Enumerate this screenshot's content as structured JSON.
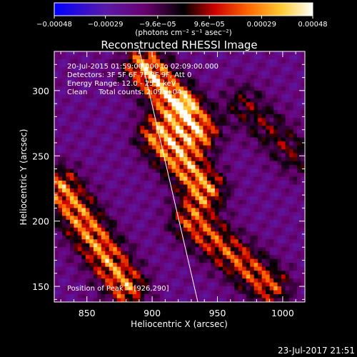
{
  "chart_data": {
    "type": "heatmap",
    "title": "Reconstructed RHESSI Image",
    "xlabel": "Heliocentric X (arcsec)",
    "ylabel": "Heliocentric Y (arcsec)",
    "xlim": [
      825,
      1017
    ],
    "ylim": [
      138,
      330
    ],
    "xticks": [
      850,
      900,
      950,
      1000
    ],
    "yticks": [
      150,
      200,
      250,
      300
    ],
    "colorbar": {
      "label": "(photons cm⁻² s⁻¹ asec⁻²)",
      "range": [
        -0.00048,
        0.00048
      ],
      "tick_labels": [
        "−0.00048",
        "−0.00029",
        "−9.6e−05",
        "9.6e−05",
        "0.00029",
        "0.00048"
      ],
      "tick_values": [
        -0.00048,
        -0.00029,
        -9.6e-05,
        9.6e-05,
        0.00029,
        0.00048
      ],
      "stops": [
        "#0000ff",
        "#5a1aa8",
        "#6a0070",
        "#000000",
        "#cc0000",
        "#ff6600",
        "#ffcc33",
        "#ffffff"
      ]
    },
    "annotations": [
      "20-Jul-2015 01:59:00.000 to 02:09:00.000",
      "Detectors: 3F 5F 6F 7F 8F 9F, Att 0",
      "Energy Range: 12.0 - 25.0 keV",
      "Clean     Total counts: 2.09e+04"
    ],
    "peak_label": "Position of Peak = [926,290]",
    "peak": [
      926,
      290
    ],
    "limb_line": [
      [
        890,
        332
      ],
      [
        935,
        138
      ]
    ],
    "bright_ridges": [
      {
        "from": [
          895,
          318
        ],
        "to": [
          935,
          270
        ],
        "peak": 1.0
      },
      {
        "from": [
          905,
          265
        ],
        "to": [
          940,
          225
        ],
        "peak": 0.9
      },
      {
        "from": [
          830,
          225
        ],
        "to": [
          880,
          150
        ],
        "peak": 0.85
      },
      {
        "from": [
          930,
          200
        ],
        "to": [
          990,
          150
        ],
        "peak": 0.7
      },
      {
        "from": [
          970,
          290
        ],
        "to": [
          1010,
          250
        ],
        "peak": 0.4
      }
    ]
  },
  "footer": {
    "timestamp": "23-Jul-2017 21:51"
  }
}
